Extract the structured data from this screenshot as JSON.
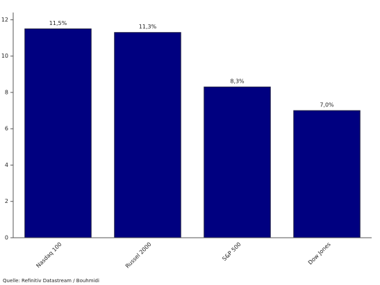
{
  "chart_data": {
    "type": "bar",
    "categories": [
      "Nasdaq 100",
      "Russel 2000",
      "S&P 500",
      "Dow Jones"
    ],
    "values": [
      11.5,
      11.3,
      8.3,
      7.0
    ],
    "value_labels": [
      "11,5%",
      "11,3%",
      "8,3%",
      "7,0%"
    ],
    "color": "#000080",
    "ylim": [
      0,
      12.4
    ],
    "yticks": [
      0,
      2,
      4,
      6,
      8,
      10,
      12
    ],
    "source": "Quelle: Refinitiv Datastream / Bouhmidi"
  }
}
